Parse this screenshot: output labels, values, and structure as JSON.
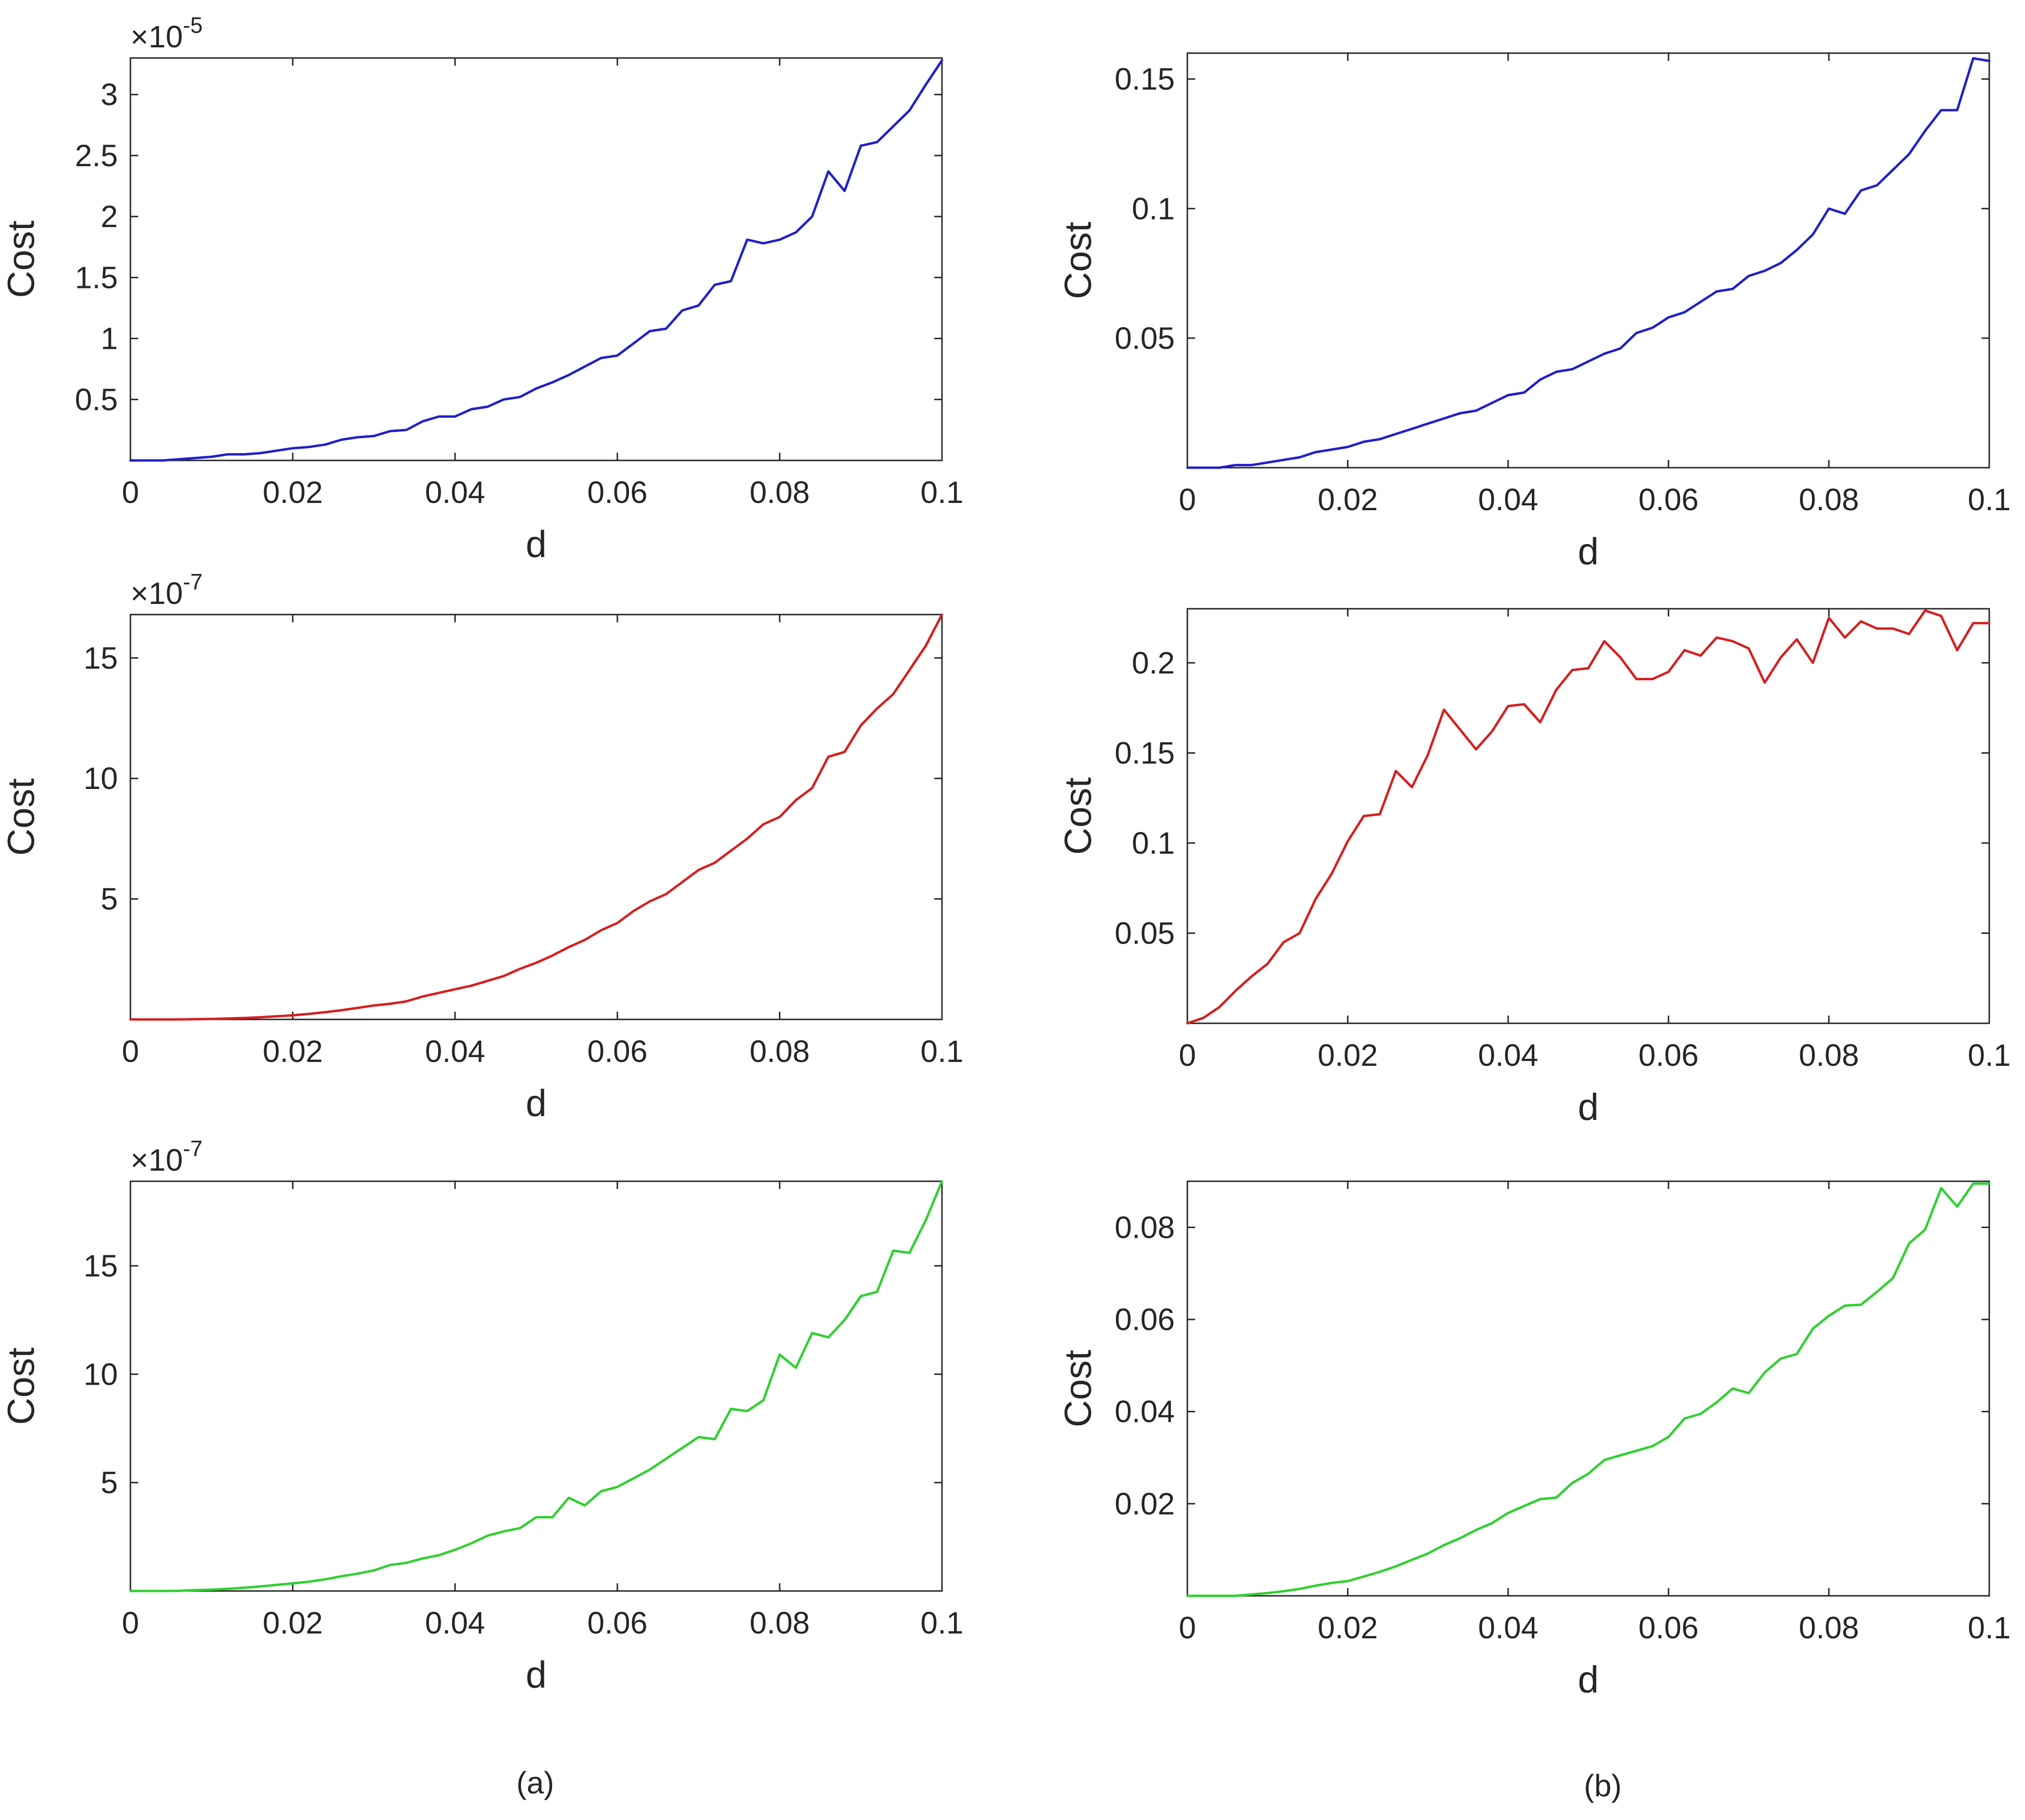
{
  "panel_labels": [
    "(a)",
    "(b)"
  ],
  "chart_data": [
    {
      "id": "a-top",
      "type": "line",
      "color": "#2020c8",
      "xlabel": "d",
      "ylabel": "Cost",
      "xlim": [
        0,
        0.1
      ],
      "ylim": [
        0,
        3.3
      ],
      "xticks": [
        0,
        0.02,
        0.04,
        0.06,
        0.08,
        0.1
      ],
      "xtick_labels": [
        "0",
        "0.02",
        "0.04",
        "0.06",
        "0.08",
        "0.1"
      ],
      "yticks": [
        0.5,
        1,
        1.5,
        2,
        2.5,
        3
      ],
      "ytick_labels": [
        "0.5",
        "1",
        "1.5",
        "2",
        "2.5",
        "3"
      ],
      "exponent_base": "×10",
      "exponent": "-5",
      "x": [
        0,
        0.002,
        0.004,
        0.006,
        0.008,
        0.01,
        0.012,
        0.014,
        0.016,
        0.018,
        0.02,
        0.022,
        0.024,
        0.026,
        0.028,
        0.03,
        0.032,
        0.034,
        0.036,
        0.038,
        0.04,
        0.042,
        0.044,
        0.046,
        0.048,
        0.05,
        0.052,
        0.054,
        0.056,
        0.058,
        0.06,
        0.062,
        0.064,
        0.066,
        0.068,
        0.07,
        0.072,
        0.074,
        0.076,
        0.078,
        0.08,
        0.082,
        0.084,
        0.086,
        0.088,
        0.09,
        0.092,
        0.094,
        0.096,
        0.098,
        0.1
      ],
      "y": [
        0,
        0,
        0,
        0.01,
        0.02,
        0.03,
        0.05,
        0.05,
        0.06,
        0.08,
        0.1,
        0.11,
        0.13,
        0.17,
        0.19,
        0.2,
        0.24,
        0.25,
        0.32,
        0.36,
        0.36,
        0.42,
        0.44,
        0.5,
        0.52,
        0.59,
        0.64,
        0.7,
        0.77,
        0.84,
        0.86,
        0.96,
        1.06,
        1.08,
        1.23,
        1.27,
        1.44,
        1.47,
        1.81,
        1.78,
        1.81,
        1.87,
        2.0,
        2.37,
        2.21,
        2.58,
        2.61,
        2.74,
        2.87,
        3.08,
        3.28
      ]
    },
    {
      "id": "b-top",
      "type": "line",
      "color": "#2020c8",
      "xlabel": "d",
      "ylabel": "Cost",
      "xlim": [
        0,
        0.1
      ],
      "ylim": [
        0,
        0.16
      ],
      "xticks": [
        0,
        0.02,
        0.04,
        0.06,
        0.08,
        0.1
      ],
      "xtick_labels": [
        "0",
        "0.02",
        "0.04",
        "0.06",
        "0.08",
        "0.1"
      ],
      "yticks": [
        0.05,
        0.1,
        0.15
      ],
      "ytick_labels": [
        "0.05",
        "0.1",
        "0.15"
      ],
      "x": [
        0,
        0.002,
        0.004,
        0.006,
        0.008,
        0.01,
        0.012,
        0.014,
        0.016,
        0.018,
        0.02,
        0.022,
        0.024,
        0.026,
        0.028,
        0.03,
        0.032,
        0.034,
        0.036,
        0.038,
        0.04,
        0.042,
        0.044,
        0.046,
        0.048,
        0.05,
        0.052,
        0.054,
        0.056,
        0.058,
        0.06,
        0.062,
        0.064,
        0.066,
        0.068,
        0.07,
        0.072,
        0.074,
        0.076,
        0.078,
        0.08,
        0.082,
        0.084,
        0.086,
        0.088,
        0.09,
        0.092,
        0.094,
        0.096,
        0.098,
        0.1
      ],
      "y": [
        0,
        0,
        0,
        0.001,
        0.001,
        0.002,
        0.003,
        0.004,
        0.006,
        0.007,
        0.008,
        0.01,
        0.011,
        0.013,
        0.015,
        0.017,
        0.019,
        0.021,
        0.022,
        0.025,
        0.028,
        0.029,
        0.034,
        0.037,
        0.038,
        0.041,
        0.044,
        0.046,
        0.052,
        0.054,
        0.058,
        0.06,
        0.064,
        0.068,
        0.069,
        0.074,
        0.076,
        0.079,
        0.084,
        0.09,
        0.1,
        0.098,
        0.107,
        0.109,
        0.115,
        0.121,
        0.13,
        0.138,
        0.138,
        0.158,
        0.157
      ]
    },
    {
      "id": "a-middle",
      "type": "line",
      "color": "#d42020",
      "xlabel": "d",
      "ylabel": "Cost",
      "xlim": [
        0,
        0.1
      ],
      "ylim": [
        0,
        16.8
      ],
      "xticks": [
        0,
        0.02,
        0.04,
        0.06,
        0.08,
        0.1
      ],
      "xtick_labels": [
        "0",
        "0.02",
        "0.04",
        "0.06",
        "0.08",
        "0.1"
      ],
      "yticks": [
        5,
        10,
        15
      ],
      "ytick_labels": [
        "5",
        "10",
        "15"
      ],
      "exponent_base": "×10",
      "exponent": "-7",
      "x": [
        0,
        0.002,
        0.004,
        0.006,
        0.008,
        0.01,
        0.012,
        0.014,
        0.016,
        0.018,
        0.02,
        0.022,
        0.024,
        0.026,
        0.028,
        0.03,
        0.032,
        0.034,
        0.036,
        0.038,
        0.04,
        0.042,
        0.044,
        0.046,
        0.048,
        0.05,
        0.052,
        0.054,
        0.056,
        0.058,
        0.06,
        0.062,
        0.064,
        0.066,
        0.068,
        0.07,
        0.072,
        0.074,
        0.076,
        0.078,
        0.08,
        0.082,
        0.084,
        0.086,
        0.088,
        0.09,
        0.092,
        0.094,
        0.096,
        0.098,
        0.1
      ],
      "y": [
        0,
        0,
        0,
        0,
        0.01,
        0.02,
        0.04,
        0.06,
        0.09,
        0.13,
        0.17,
        0.23,
        0.3,
        0.38,
        0.48,
        0.58,
        0.65,
        0.75,
        0.95,
        1.1,
        1.25,
        1.4,
        1.6,
        1.8,
        2.1,
        2.35,
        2.65,
        3.0,
        3.3,
        3.7,
        4.0,
        4.5,
        4.9,
        5.2,
        5.7,
        6.2,
        6.5,
        7.0,
        7.5,
        8.1,
        8.4,
        9.1,
        9.6,
        10.9,
        11.1,
        12.2,
        12.9,
        13.5,
        14.5,
        15.5,
        16.8
      ]
    },
    {
      "id": "b-middle",
      "type": "line",
      "color": "#d42020",
      "xlabel": "d",
      "ylabel": "Cost",
      "xlim": [
        0,
        0.1
      ],
      "ylim": [
        0,
        0.23
      ],
      "xticks": [
        0,
        0.02,
        0.04,
        0.06,
        0.08,
        0.1
      ],
      "xtick_labels": [
        "0",
        "0.02",
        "0.04",
        "0.06",
        "0.08",
        "0.1"
      ],
      "yticks": [
        0.05,
        0.1,
        0.15,
        0.2
      ],
      "ytick_labels": [
        "0.05",
        "0.1",
        "0.15",
        "0.2"
      ],
      "x": [
        0,
        0.002,
        0.004,
        0.006,
        0.008,
        0.01,
        0.012,
        0.014,
        0.016,
        0.018,
        0.02,
        0.022,
        0.024,
        0.026,
        0.028,
        0.03,
        0.032,
        0.034,
        0.036,
        0.038,
        0.04,
        0.042,
        0.044,
        0.046,
        0.048,
        0.05,
        0.052,
        0.054,
        0.056,
        0.058,
        0.06,
        0.062,
        0.064,
        0.066,
        0.068,
        0.07,
        0.072,
        0.074,
        0.076,
        0.078,
        0.08,
        0.082,
        0.084,
        0.086,
        0.088,
        0.09,
        0.092,
        0.094,
        0.096,
        0.098,
        0.1
      ],
      "y": [
        0,
        0.003,
        0.009,
        0.018,
        0.026,
        0.033,
        0.045,
        0.05,
        0.069,
        0.083,
        0.101,
        0.115,
        0.116,
        0.14,
        0.131,
        0.149,
        0.174,
        0.163,
        0.152,
        0.162,
        0.176,
        0.177,
        0.167,
        0.185,
        0.196,
        0.197,
        0.212,
        0.203,
        0.191,
        0.191,
        0.195,
        0.207,
        0.204,
        0.214,
        0.212,
        0.208,
        0.189,
        0.203,
        0.213,
        0.2,
        0.225,
        0.214,
        0.223,
        0.219,
        0.219,
        0.216,
        0.229,
        0.226,
        0.207,
        0.222,
        0.222
      ]
    },
    {
      "id": "a-bottom",
      "type": "line",
      "color": "#30d030",
      "xlabel": "d",
      "ylabel": "Cost",
      "xlim": [
        0,
        0.1
      ],
      "ylim": [
        0,
        18.9
      ],
      "xticks": [
        0,
        0.02,
        0.04,
        0.06,
        0.08,
        0.1
      ],
      "xtick_labels": [
        "0",
        "0.02",
        "0.04",
        "0.06",
        "0.08",
        "0.1"
      ],
      "yticks": [
        5,
        10,
        15
      ],
      "ytick_labels": [
        "5",
        "10",
        "15"
      ],
      "exponent_base": "×10",
      "exponent": "-7",
      "x": [
        0,
        0.002,
        0.004,
        0.006,
        0.008,
        0.01,
        0.012,
        0.014,
        0.016,
        0.018,
        0.02,
        0.022,
        0.024,
        0.026,
        0.028,
        0.03,
        0.032,
        0.034,
        0.036,
        0.038,
        0.04,
        0.042,
        0.044,
        0.046,
        0.048,
        0.05,
        0.052,
        0.054,
        0.056,
        0.058,
        0.06,
        0.062,
        0.064,
        0.066,
        0.068,
        0.07,
        0.072,
        0.074,
        0.076,
        0.078,
        0.08,
        0.082,
        0.084,
        0.086,
        0.088,
        0.09,
        0.092,
        0.094,
        0.096,
        0.098,
        0.1
      ],
      "y": [
        0,
        0,
        0,
        0.01,
        0.04,
        0.06,
        0.1,
        0.15,
        0.21,
        0.28,
        0.35,
        0.43,
        0.54,
        0.68,
        0.8,
        0.95,
        1.2,
        1.3,
        1.5,
        1.65,
        1.9,
        2.2,
        2.55,
        2.75,
        2.9,
        3.4,
        3.4,
        4.3,
        3.95,
        4.6,
        4.8,
        5.2,
        5.6,
        6.1,
        6.6,
        7.1,
        7.0,
        8.4,
        8.3,
        8.8,
        10.9,
        10.3,
        11.9,
        11.7,
        12.5,
        13.6,
        13.8,
        15.7,
        15.6,
        17.1,
        18.9
      ]
    },
    {
      "id": "b-bottom",
      "type": "line",
      "color": "#30d030",
      "xlabel": "d",
      "ylabel": "Cost",
      "xlim": [
        0,
        0.1
      ],
      "ylim": [
        0,
        0.09
      ],
      "xticks": [
        0,
        0.02,
        0.04,
        0.06,
        0.08,
        0.1
      ],
      "xtick_labels": [
        "0",
        "0.02",
        "0.04",
        "0.06",
        "0.08",
        "0.1"
      ],
      "yticks": [
        0.02,
        0.04,
        0.06,
        0.08
      ],
      "ytick_labels": [
        "0.02",
        "0.04",
        "0.06",
        "0.08"
      ],
      "x": [
        0,
        0.002,
        0.004,
        0.006,
        0.008,
        0.01,
        0.012,
        0.014,
        0.016,
        0.018,
        0.02,
        0.022,
        0.024,
        0.026,
        0.028,
        0.03,
        0.032,
        0.034,
        0.036,
        0.038,
        0.04,
        0.042,
        0.044,
        0.046,
        0.048,
        0.05,
        0.052,
        0.054,
        0.056,
        0.058,
        0.06,
        0.062,
        0.064,
        0.066,
        0.068,
        0.07,
        0.072,
        0.074,
        0.076,
        0.078,
        0.08,
        0.082,
        0.084,
        0.086,
        0.088,
        0.09,
        0.092,
        0.094,
        0.096,
        0.098,
        0.1
      ],
      "y": [
        0,
        0,
        0,
        0,
        0.0003,
        0.0006,
        0.001,
        0.0015,
        0.0022,
        0.0028,
        0.0032,
        0.0042,
        0.0052,
        0.0064,
        0.0078,
        0.0092,
        0.011,
        0.0125,
        0.0143,
        0.0158,
        0.018,
        0.0195,
        0.021,
        0.0213,
        0.0245,
        0.0265,
        0.0295,
        0.0305,
        0.0315,
        0.0325,
        0.0345,
        0.0385,
        0.0395,
        0.042,
        0.045,
        0.044,
        0.0485,
        0.0515,
        0.0525,
        0.058,
        0.0608,
        0.063,
        0.0632,
        0.066,
        0.069,
        0.0765,
        0.0795,
        0.0885,
        0.0845,
        0.0895,
        0.0895
      ]
    }
  ]
}
